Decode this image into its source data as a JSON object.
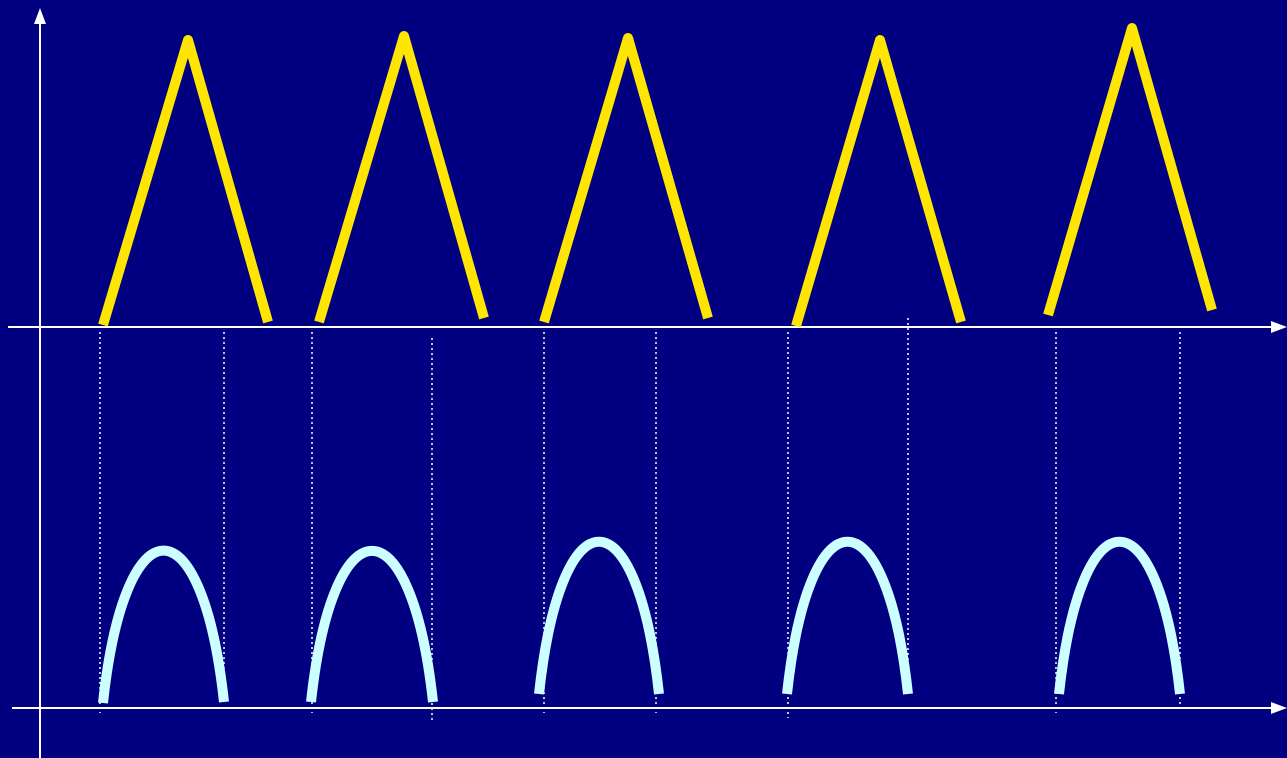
{
  "colors": {
    "background": "#000080",
    "axis": "#ffffff",
    "guide": "#ffffff",
    "triangle": "#ffe600",
    "arch": "#ccffff"
  },
  "pulses": [
    {
      "index": 1
    },
    {
      "index": 2
    },
    {
      "index": 3
    },
    {
      "index": 4
    },
    {
      "index": 5
    }
  ]
}
